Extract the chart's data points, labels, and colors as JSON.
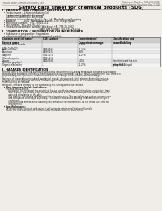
{
  "bg_color": "#f0ede8",
  "header_top_left": "Product Name: Lithium Ion Battery Cell",
  "header_top_right_line1": "Substance Number: SDS-049-00019",
  "header_top_right_line2": "Establishment / Revision: Dec.7.2018",
  "title": "Safety data sheet for chemical products (SDS)",
  "section1_title": "1. PRODUCT AND COMPANY IDENTIFICATION",
  "section1_lines": [
    "  • Product name: Lithium Ion Battery Cell",
    "  • Product code: Cylindrical-type cell",
    "      (AH-B6500, AH-B6500, AH-B650A",
    "  • Company name:    Sanyo Electric Co., Ltd.  Mobile Energy Company",
    "  • Address:            2001  Kamitokura, Sumoto-City, Hyogo, Japan",
    "  • Telephone number:   +81-799-26-4111",
    "  • Fax number:  +81-799-26-4121",
    "  • Emergency telephone number (Weekday) +81-799-26-3962",
    "                                                   (Night and holiday) +81-799-26-4101"
  ],
  "section2_title": "2. COMPOSITION / INFORMATION ON INGREDIENTS",
  "section2_lines": [
    "  • Substance or preparation: Preparation",
    "  • Information about the chemical nature of product:"
  ],
  "col_labels": [
    "Common chemical name /\nSeveral name",
    "CAS number",
    "Concentration /\nConcentration range",
    "Classification and\nhazard labeling"
  ],
  "table_rows": [
    [
      "Lithium cobalt dioxide\n(LiMn-Co²PbO2)",
      "-",
      "30-60%",
      ""
    ],
    [
      "Iron",
      "7439-89-6",
      "15-25%",
      ""
    ],
    [
      "Aluminum",
      "7429-90-5",
      "2-6%",
      ""
    ],
    [
      "Graphite\n(flaked graphite)\n(artificial graphite)",
      "7782-42-5\n7782-42-5",
      "10-25%",
      ""
    ],
    [
      "Copper",
      "7440-50-8",
      "5-15%",
      "Sensitization of the skin\ngroup R43.2"
    ],
    [
      "Organic electrolyte",
      "-",
      "10-20%",
      "Inflammable liquid"
    ]
  ],
  "section3_title": "3. HAZARDS IDENTIFICATION",
  "section3_body": [
    "For this battery cell, chemical substances are stored in a hermetically-sealed metal case, designed to withstand",
    "temperatures variations and electro-chemical reactions during normal use. As a result, during normal use, there is no",
    "physical danger of injection or inhalation and there is no danger of hazardous materials leakage.",
    "",
    "However, if exposed to a fire, added mechanical shocks, decomposed, while electro-chemical by misuse,",
    "the gas release vent will be operated. The battery cell case will be breached of fire-patterns. Hazardous",
    "materials may be released.",
    "",
    "Moreover, if heated strongly by the surrounding fire, some gas may be emitted."
  ],
  "section3_effects": [
    "  • Most important hazard and effects:",
    "       Human health effects:",
    "          Inhalation: The release of the electrolyte has an anesthesia action and stimulates a respiratory tract.",
    "          Skin contact: The release of the electrolyte stimulates a skin. The electrolyte skin contact causes a",
    "          sore and stimulation on the skin.",
    "          Eye contact: The release of the electrolyte stimulates eyes. The electrolyte eye contact causes a sore",
    "          and stimulation on the eye. Especially, a substance that causes a strong inflammation of the eye is",
    "          contained.",
    "          Environmental effects: Since a battery cell remains in the environment, do not throw out it into the",
    "          environment.",
    "",
    "  • Specific hazards:",
    "       If the electrolyte contacts with water, it will generate detrimental hydrogen fluoride.",
    "       Since the lead environment is inflammable liquid, do not bring close to fire."
  ]
}
